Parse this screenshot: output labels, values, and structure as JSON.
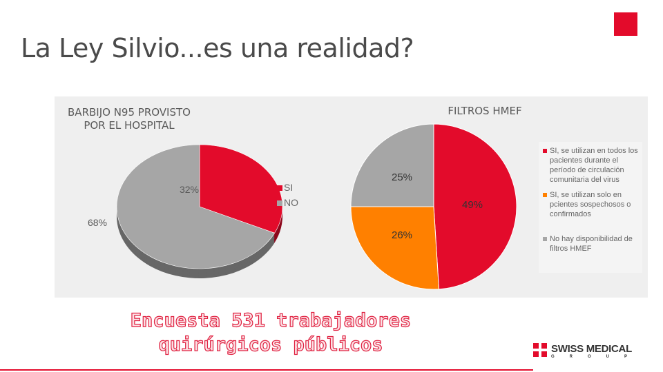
{
  "header": {
    "title": "La Ley Silvio...es una realidad?"
  },
  "footer": {
    "line1": "Encuesta 531 trabajadores",
    "line2": "quirúrgicos públicos"
  },
  "logo": {
    "brand": "SWISS MEDICAL",
    "group": "GROUP"
  },
  "colors": {
    "accent": "#e30b2b",
    "gray": "#a6a6a6",
    "orange": "#ff8000"
  },
  "chart_data": [
    {
      "type": "pie",
      "title": "BARBIJO N95 PROVISTO POR EL HOSPITAL",
      "legend_position": "right",
      "slices": [
        {
          "label": "SI",
          "value": 32,
          "display": "32%",
          "color": "#e30b2b"
        },
        {
          "label": "NO",
          "value": 68,
          "display": "68%",
          "color": "#a6a6a6"
        }
      ]
    },
    {
      "type": "pie",
      "title": "FILTROS HMEF",
      "legend_position": "right",
      "slices": [
        {
          "label": "SI, se utilizan en todos los pacientes durante el período de circulación comunitaria del virus",
          "value": 49,
          "display": "49%",
          "color": "#e30b2b"
        },
        {
          "label": "SI, se utilizan solo en pcientes sospechosos o confirmados",
          "value": 26,
          "display": "26%",
          "color": "#ff8000"
        },
        {
          "label": "No hay disponibilidad de filtros HMEF",
          "value": 25,
          "display": "25%",
          "color": "#a6a6a6"
        }
      ]
    }
  ]
}
